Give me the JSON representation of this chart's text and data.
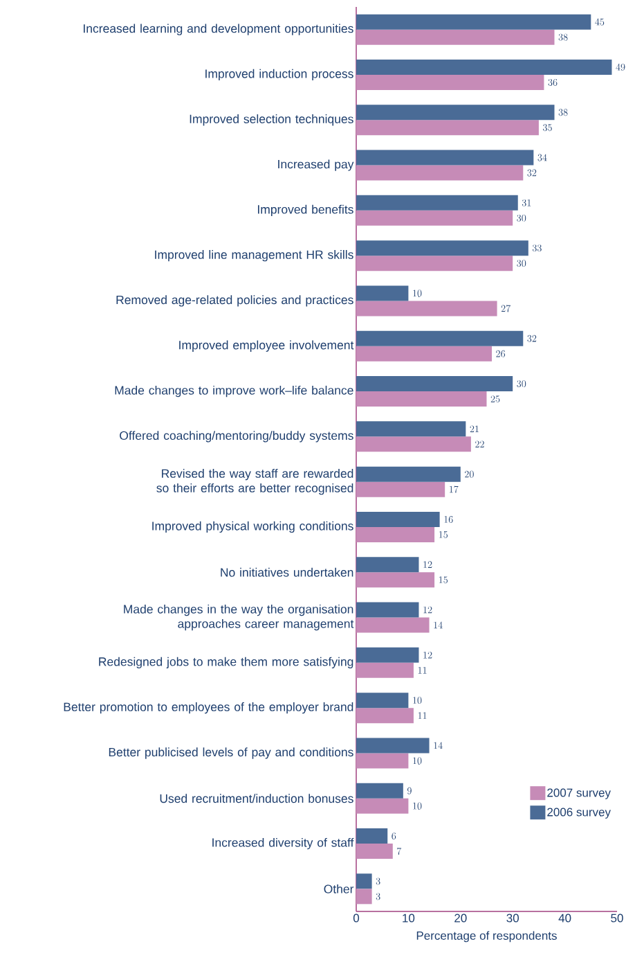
{
  "chart_data": {
    "type": "bar",
    "orientation": "horizontal",
    "xlabel": "Percentage of respondents",
    "categories": [
      "Increased learning and development opportunities",
      "Improved induction process",
      "Improved selection techniques",
      "Increased pay",
      "Improved benefits",
      "Improved line management HR skills",
      "Removed age-related policies and practices",
      "Improved employee involvement",
      "Made changes to improve work–life balance",
      "Offered coaching/mentoring/buddy systems",
      "Revised the way staff are rewarded so their efforts are better recognised",
      "Improved physical working conditions",
      "No initiatives undertaken",
      "Made changes in the way the organisation approaches career management",
      "Redesigned jobs to make them more satisfying",
      "Better promotion to employees of the employer brand",
      "Better publicised levels of pay and conditions",
      "Used recruitment/induction bonuses",
      "Increased diversity of staff",
      "Other"
    ],
    "series": [
      {
        "name": "2007 survey",
        "color": "#c68bb7",
        "values": [
          38,
          36,
          35,
          32,
          30,
          30,
          27,
          26,
          25,
          22,
          17,
          15,
          15,
          14,
          11,
          11,
          10,
          10,
          7,
          3
        ]
      },
      {
        "name": "2006 survey",
        "color": "#4a6b96",
        "values": [
          45,
          49,
          38,
          34,
          31,
          33,
          10,
          32,
          30,
          21,
          20,
          16,
          12,
          12,
          12,
          10,
          14,
          9,
          6,
          3
        ]
      }
    ],
    "xlim": [
      0,
      50
    ],
    "xticks": [
      0,
      10,
      20,
      30,
      40,
      50
    ],
    "data_labels": true,
    "legend": "bottom right",
    "grid": false
  }
}
